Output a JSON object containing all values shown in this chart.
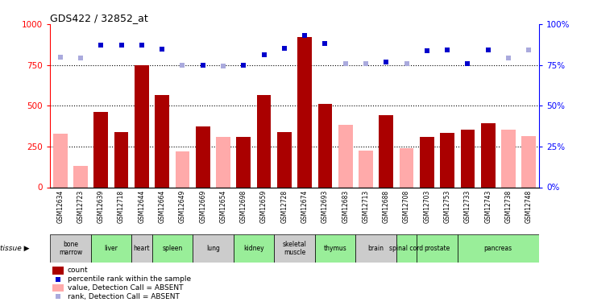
{
  "title": "GDS422 / 32852_at",
  "samples": [
    "GSM12634",
    "GSM12723",
    "GSM12639",
    "GSM12718",
    "GSM12644",
    "GSM12664",
    "GSM12649",
    "GSM12669",
    "GSM12654",
    "GSM12698",
    "GSM12659",
    "GSM12728",
    "GSM12674",
    "GSM12693",
    "GSM12683",
    "GSM12713",
    "GSM12688",
    "GSM12708",
    "GSM12703",
    "GSM12753",
    "GSM12733",
    "GSM12743",
    "GSM12738",
    "GSM12748"
  ],
  "tissues": [
    {
      "label": "bone\nmarrow",
      "start": 0,
      "end": 1,
      "color": "#cccccc"
    },
    {
      "label": "liver",
      "start": 2,
      "end": 3,
      "color": "#99ee99"
    },
    {
      "label": "heart",
      "start": 4,
      "end": 4,
      "color": "#cccccc"
    },
    {
      "label": "spleen",
      "start": 5,
      "end": 6,
      "color": "#99ee99"
    },
    {
      "label": "lung",
      "start": 7,
      "end": 8,
      "color": "#cccccc"
    },
    {
      "label": "kidney",
      "start": 9,
      "end": 10,
      "color": "#99ee99"
    },
    {
      "label": "skeletal\nmuscle",
      "start": 11,
      "end": 12,
      "color": "#cccccc"
    },
    {
      "label": "thymus",
      "start": 13,
      "end": 14,
      "color": "#99ee99"
    },
    {
      "label": "brain",
      "start": 15,
      "end": 16,
      "color": "#cccccc"
    },
    {
      "label": "spinal cord",
      "start": 17,
      "end": 17,
      "color": "#99ee99"
    },
    {
      "label": "prostate",
      "start": 18,
      "end": 19,
      "color": "#99ee99"
    },
    {
      "label": "pancreas",
      "start": 20,
      "end": 23,
      "color": "#99ee99"
    }
  ],
  "bar_values": [
    330,
    130,
    460,
    340,
    750,
    565,
    220,
    375,
    310,
    310,
    565,
    340,
    920,
    510,
    385,
    225,
    440,
    240,
    310,
    335,
    355,
    395,
    355,
    315
  ],
  "bar_is_absent": [
    true,
    true,
    false,
    false,
    false,
    false,
    true,
    false,
    true,
    false,
    false,
    false,
    false,
    false,
    true,
    true,
    false,
    true,
    false,
    false,
    false,
    false,
    true,
    true
  ],
  "rank_values": [
    80,
    79.5,
    87,
    87,
    87,
    84.5,
    75,
    75,
    74.5,
    75,
    81,
    85,
    93,
    88,
    76,
    76,
    77,
    76,
    83.5,
    84,
    76,
    84,
    79.5,
    84
  ],
  "rank_is_absent": [
    true,
    true,
    false,
    false,
    false,
    false,
    true,
    false,
    true,
    false,
    false,
    false,
    false,
    false,
    true,
    true,
    false,
    true,
    false,
    false,
    false,
    false,
    true,
    true
  ],
  "ylim_left": [
    0,
    1000
  ],
  "ylim_right": [
    0,
    100
  ],
  "yticks_left": [
    0,
    250,
    500,
    750,
    1000
  ],
  "yticks_right": [
    0,
    25,
    50,
    75,
    100
  ],
  "bar_color_present": "#aa0000",
  "bar_color_absent": "#ffaaaa",
  "rank_color_present": "#0000cc",
  "rank_color_absent": "#aaaadd",
  "background_color": "#ffffff",
  "legend_items": [
    {
      "label": "count",
      "color": "#aa0000",
      "type": "bar"
    },
    {
      "label": "percentile rank within the sample",
      "color": "#0000cc",
      "type": "scatter"
    },
    {
      "label": "value, Detection Call = ABSENT",
      "color": "#ffaaaa",
      "type": "bar"
    },
    {
      "label": "rank, Detection Call = ABSENT",
      "color": "#aaaadd",
      "type": "scatter"
    }
  ]
}
